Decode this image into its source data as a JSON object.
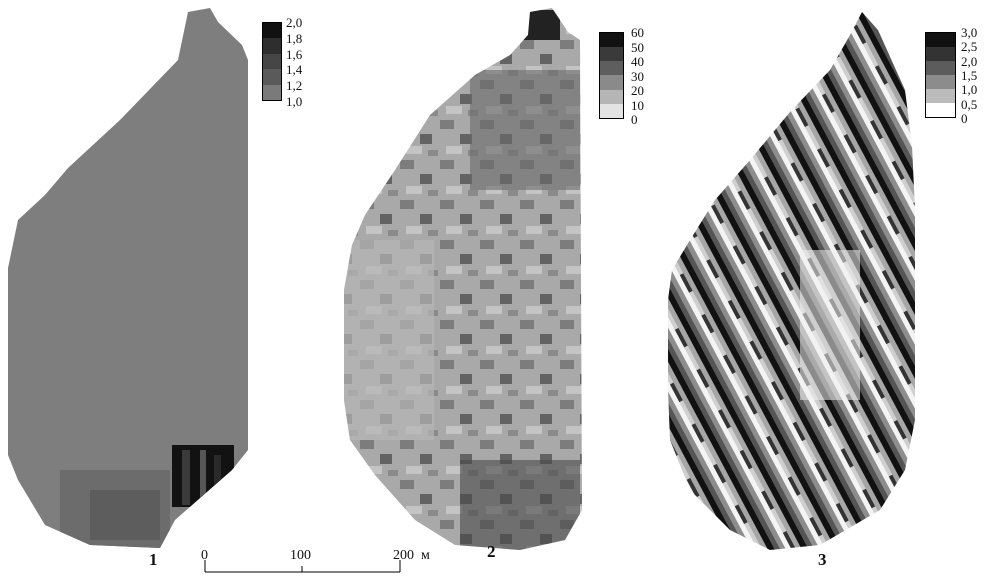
{
  "panels": [
    {
      "label": "1",
      "legend": {
        "ticks": [
          "2,0",
          "1,8",
          "1,6",
          "1,4",
          "1,2",
          "1,0"
        ],
        "colors": [
          "#111111",
          "#2e2e2e",
          "#464646",
          "#5a5a5a",
          "#7a7a7a"
        ]
      }
    },
    {
      "label": "2",
      "legend": {
        "ticks": [
          "60",
          "50",
          "40",
          "30",
          "20",
          "10",
          "0"
        ],
        "colors": [
          "#111111",
          "#3a3a3a",
          "#5e5e5e",
          "#8a8a8a",
          "#b5b5b5",
          "#e3e3e3"
        ]
      }
    },
    {
      "label": "3",
      "legend": {
        "ticks": [
          "3,0",
          "2,5",
          "2,0",
          "1,5",
          "1,0",
          "0,5",
          "0"
        ],
        "colors": [
          "#111111",
          "#333333",
          "#5c5c5c",
          "#8c8c8c",
          "#bcbcbc",
          "#ffffff"
        ]
      }
    }
  ],
  "scale_bar": {
    "ticks": [
      "0",
      "100",
      "200"
    ],
    "unit": "м"
  }
}
